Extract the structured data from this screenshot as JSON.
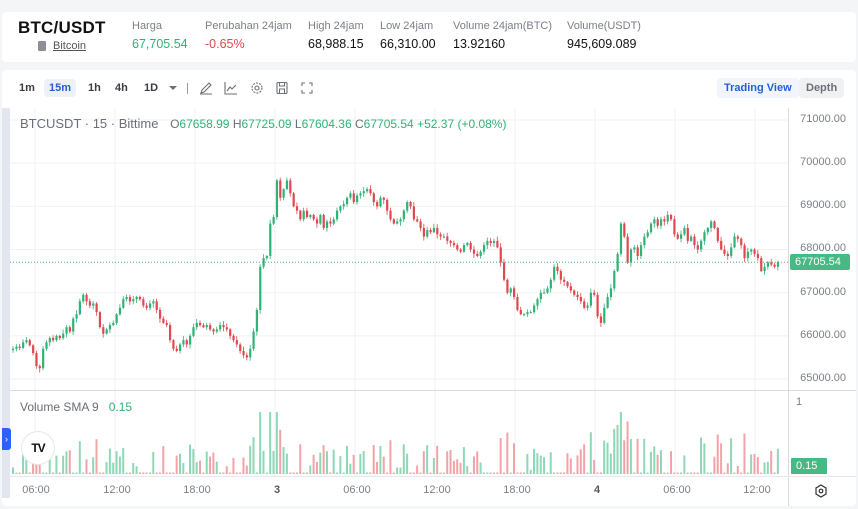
{
  "ticker": {
    "pair": "BTC/USDT",
    "coin_name": "Bitcoin",
    "coin_icon": "book-icon",
    "stats": [
      {
        "label": "Harga",
        "value": "67,705.54",
        "tone": "green"
      },
      {
        "label": "Perubahan 24jam",
        "value": "-0.65%",
        "tone": "red"
      },
      {
        "label": "High 24jam",
        "value": "68,988.15",
        "tone": ""
      },
      {
        "label": "Low 24jam",
        "value": "66,310.00",
        "tone": ""
      },
      {
        "label": "Volume 24jam(BTC)",
        "value": "13.92160",
        "tone": ""
      },
      {
        "label": "Volume(USDT)",
        "value": "945,609.089",
        "tone": ""
      }
    ]
  },
  "toolbar": {
    "timeframes": [
      "1m",
      "15m",
      "1h",
      "4h",
      "1D"
    ],
    "active_timeframe": "15m",
    "icons": [
      "chevron-down-icon",
      "draw-pen-icon",
      "indicators-icon",
      "gear-icon",
      "save-icon",
      "fullscreen-icon"
    ],
    "view_tabs": {
      "trading_view": "Trading View",
      "depth": "Depth"
    }
  },
  "chart": {
    "symbol_line": "BTCUSDT · 15 · Bittime",
    "ohlc": {
      "o_label": "O",
      "o": "67658.99",
      "h_label": "H",
      "h": "67725.09",
      "l_label": "L",
      "l": "67604.36",
      "c_label": "C",
      "c": "67705.54",
      "change": "+52.37 (+0.08%)"
    },
    "last_price": "67705.54",
    "volume_legend": "Volume SMA 9",
    "volume_value": "0.15",
    "volume_last": "0.15",
    "volume_scale_top": "1",
    "colors": {
      "up": "#2fb276",
      "down": "#e1474e",
      "up_vol": "#8fd8b6",
      "down_vol": "#f2a3a8",
      "accent": "#2260d8",
      "last_price_bg": "#46b984"
    }
  },
  "chart_data": {
    "type": "candlestick",
    "title": "BTCUSDT · 15 · Bittime",
    "y_ticks": [
      "71000.00",
      "70000.00",
      "69000.00",
      "68000.00",
      "67000.00",
      "66000.00",
      "65000.00"
    ],
    "x_ticks": [
      "06:00",
      "12:00",
      "18:00",
      "3",
      "06:00",
      "12:00",
      "18:00",
      "4",
      "06:00",
      "12:00"
    ],
    "ylim": [
      64900,
      71300
    ],
    "last_price": 67705.54,
    "closes": [
      65700,
      65750,
      65720,
      65850,
      65900,
      65780,
      65600,
      65300,
      65250,
      65700,
      65850,
      65950,
      65900,
      66000,
      65950,
      66050,
      66200,
      66100,
      66400,
      66500,
      66800,
      66950,
      66800,
      66700,
      66750,
      66550,
      66200,
      66050,
      66150,
      66250,
      66300,
      66500,
      66650,
      66850,
      66900,
      66800,
      66850,
      66900,
      66850,
      66700,
      66650,
      66750,
      66800,
      66600,
      66400,
      66300,
      66250,
      65900,
      65700,
      65650,
      65800,
      65900,
      65800,
      66000,
      66200,
      66300,
      66250,
      66200,
      66250,
      66150,
      66100,
      66150,
      66250,
      66200,
      66150,
      66000,
      65900,
      65800,
      65650,
      65550,
      65500,
      65700,
      66100,
      66600,
      67600,
      67800,
      67850,
      68600,
      68750,
      69600,
      69200,
      69400,
      69600,
      69300,
      69000,
      68900,
      68700,
      68900,
      68750,
      68800,
      68700,
      68600,
      68800,
      68500,
      68650,
      68600,
      68700,
      68900,
      69000,
      69050,
      69200,
      69300,
      69100,
      69250,
      69300,
      69350,
      69400,
      69300,
      69100,
      69000,
      69200,
      69150,
      68900,
      68700,
      68600,
      68650,
      68700,
      68900,
      69100,
      69000,
      68700,
      68650,
      68500,
      68300,
      68450,
      68400,
      68500,
      68350,
      68300,
      68300,
      68200,
      68150,
      68100,
      68000,
      67950,
      68100,
      68150,
      68000,
      67900,
      67850,
      67950,
      68100,
      68200,
      68150,
      68200,
      68050,
      67700,
      67300,
      67000,
      67100,
      66900,
      66600,
      66500,
      66500,
      66550,
      66550,
      66700,
      66850,
      67000,
      67000,
      67100,
      67300,
      67600,
      67500,
      67300,
      67250,
      67150,
      67050,
      66950,
      66900,
      66800,
      66650,
      66700,
      67000,
      66950,
      66450,
      66300,
      66650,
      66900,
      67100,
      67500,
      67900,
      68600,
      68300,
      67700,
      68000,
      68050,
      67850,
      68100,
      68300,
      68400,
      68600,
      68700,
      68550,
      68700,
      68650,
      68800,
      68700,
      68350,
      68250,
      68350,
      68500,
      68200,
      68300,
      68100,
      68000,
      68200,
      68400,
      68500,
      68650,
      68500,
      68200,
      68000,
      67900,
      67850,
      68050,
      68300,
      68250,
      68100,
      67800,
      67950,
      68000,
      67900,
      67800,
      67500,
      67600,
      67700,
      67650,
      67600,
      67705
    ]
  }
}
